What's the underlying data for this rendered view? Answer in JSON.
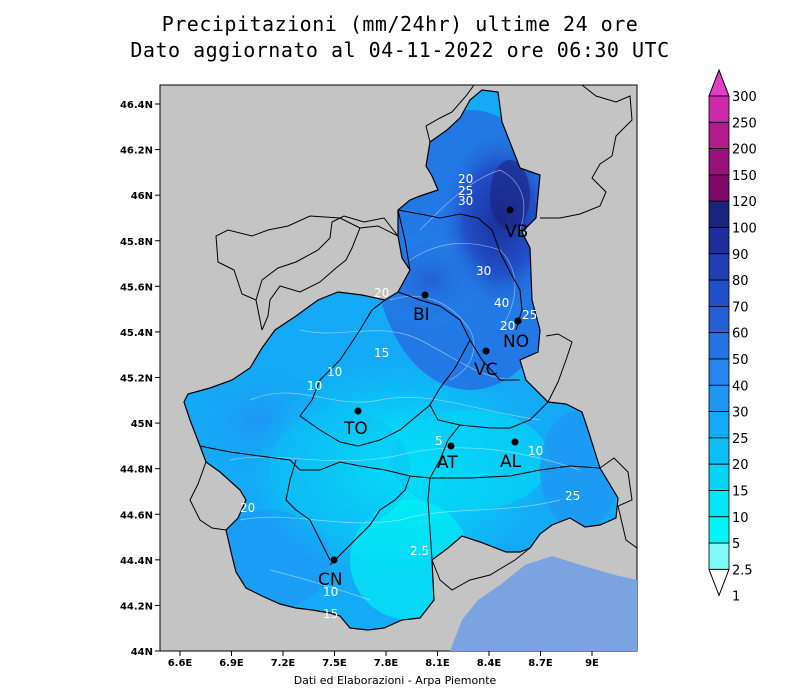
{
  "title": {
    "line1": "Precipitazioni (mm/24hr) ultime 24 ore",
    "line2": "Dato aggiornato al 04-11-2022 ore 06:30 UTC"
  },
  "footer": "Dati ed Elaborazioni - Arpa Piemonte",
  "axes": {
    "lat_ticks": [
      "46.4N",
      "46.2N",
      "46N",
      "45.8N",
      "45.6N",
      "45.4N",
      "45.2N",
      "45N",
      "44.8N",
      "44.6N",
      "44.4N",
      "44.2N",
      "44N"
    ],
    "lon_ticks": [
      "6.6E",
      "6.9E",
      "7.2E",
      "7.5E",
      "7.8E",
      "8.1E",
      "8.4E",
      "8.7E",
      "9E"
    ]
  },
  "colorbar": {
    "labels": [
      "300",
      "250",
      "200",
      "150",
      "120",
      "100",
      "90",
      "80",
      "70",
      "60",
      "50",
      "40",
      "30",
      "25",
      "20",
      "15",
      "10",
      "5",
      "2.5",
      "1"
    ],
    "colors": [
      "#e23fc7",
      "#cc2aa8",
      "#b31a8c",
      "#99127a",
      "#7d0a66",
      "#1a237e",
      "#1d2d99",
      "#1f3fb3",
      "#2250c8",
      "#2360d6",
      "#2473e3",
      "#2485ee",
      "#1d97f3",
      "#14aaf5",
      "#0cbff6",
      "#05d3f7",
      "#00e6f7",
      "#00f5f7",
      "#7ff8f8"
    ]
  },
  "cities": [
    {
      "name": "VB"
    },
    {
      "name": "BI"
    },
    {
      "name": "NO"
    },
    {
      "name": "VC"
    },
    {
      "name": "TO"
    },
    {
      "name": "AT"
    },
    {
      "name": "AL"
    },
    {
      "name": "CN"
    }
  ],
  "contour_labels": [
    "20",
    "25",
    "30",
    "30",
    "20",
    "40",
    "25",
    "20",
    "15",
    "10",
    "10",
    "5",
    "10",
    "25",
    "20",
    "2.5",
    "10",
    "15"
  ]
}
